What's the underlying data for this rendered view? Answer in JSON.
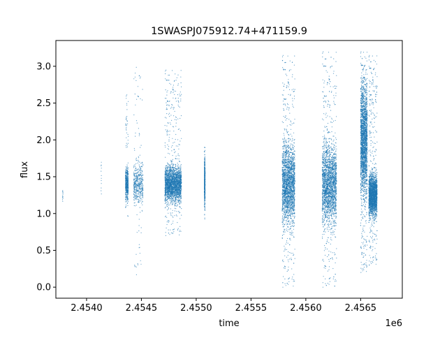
{
  "chart_data": {
    "type": "scatter",
    "title": "1SWASPJ075912.74+471159.9",
    "xlabel": "time",
    "ylabel": "flux",
    "x_offset_label": "1e6",
    "xlim": [
      2453720,
      2456880
    ],
    "ylim": [
      -0.15,
      3.35
    ],
    "x_ticks": [
      2454000,
      2454500,
      2455000,
      2455500,
      2456000,
      2456500
    ],
    "x_tick_labels": [
      "2.4540",
      "2.4545",
      "2.4550",
      "2.4555",
      "2.4560",
      "2.4565"
    ],
    "y_ticks": [
      0,
      0.5,
      1,
      1.5,
      2,
      2.5,
      3
    ],
    "y_tick_labels": [
      "0.0",
      "0.5",
      "1.0",
      "1.5",
      "2.0",
      "2.5",
      "3.0"
    ],
    "grid": false,
    "legend": "none",
    "marker_color": "#1f77b4",
    "clusters": [
      {
        "time": [
          2453780,
          2453786
        ],
        "flux_core": [
          1.05,
          1.35
        ],
        "flux_extent": [
          1.05,
          1.35
        ],
        "density": "sparse"
      },
      {
        "time": [
          2454132,
          2454136
        ],
        "flux_core": [
          1.05,
          1.9
        ],
        "flux_extent": [
          1.05,
          2.05
        ],
        "density": "sparse"
      },
      {
        "time": [
          2454355,
          2454380
        ],
        "flux_core": [
          1.1,
          1.7
        ],
        "flux_extent": [
          0.95,
          2.65
        ],
        "density": "medium"
      },
      {
        "time": [
          2454430,
          2454515
        ],
        "flux_core": [
          1.0,
          1.8
        ],
        "flux_extent": [
          0.15,
          3.1
        ],
        "density": "medium"
      },
      {
        "time": [
          2454715,
          2454865
        ],
        "flux_core": [
          1.05,
          1.75
        ],
        "flux_extent": [
          0.7,
          2.95
        ],
        "density": "dense"
      },
      {
        "time": [
          2455075,
          2455081
        ],
        "flux_core": [
          1.0,
          1.85
        ],
        "flux_extent": [
          0.9,
          1.9
        ],
        "density": "medium"
      },
      {
        "time": [
          2455785,
          2455900
        ],
        "flux_core": [
          0.6,
          2.2
        ],
        "flux_extent": [
          0.0,
          3.15
        ],
        "density": "dense"
      },
      {
        "time": [
          2456150,
          2456280
        ],
        "flux_core": [
          0.6,
          2.2
        ],
        "flux_extent": [
          0.0,
          3.2
        ],
        "density": "dense"
      },
      {
        "time": [
          2456500,
          2456560
        ],
        "flux_core": [
          0.9,
          3.1
        ],
        "flux_extent": [
          0.2,
          3.2
        ],
        "density": "dense"
      },
      {
        "time": [
          2456575,
          2456650
        ],
        "flux_core": [
          0.85,
          1.65
        ],
        "flux_extent": [
          0.3,
          3.15
        ],
        "density": "dense"
      }
    ]
  }
}
